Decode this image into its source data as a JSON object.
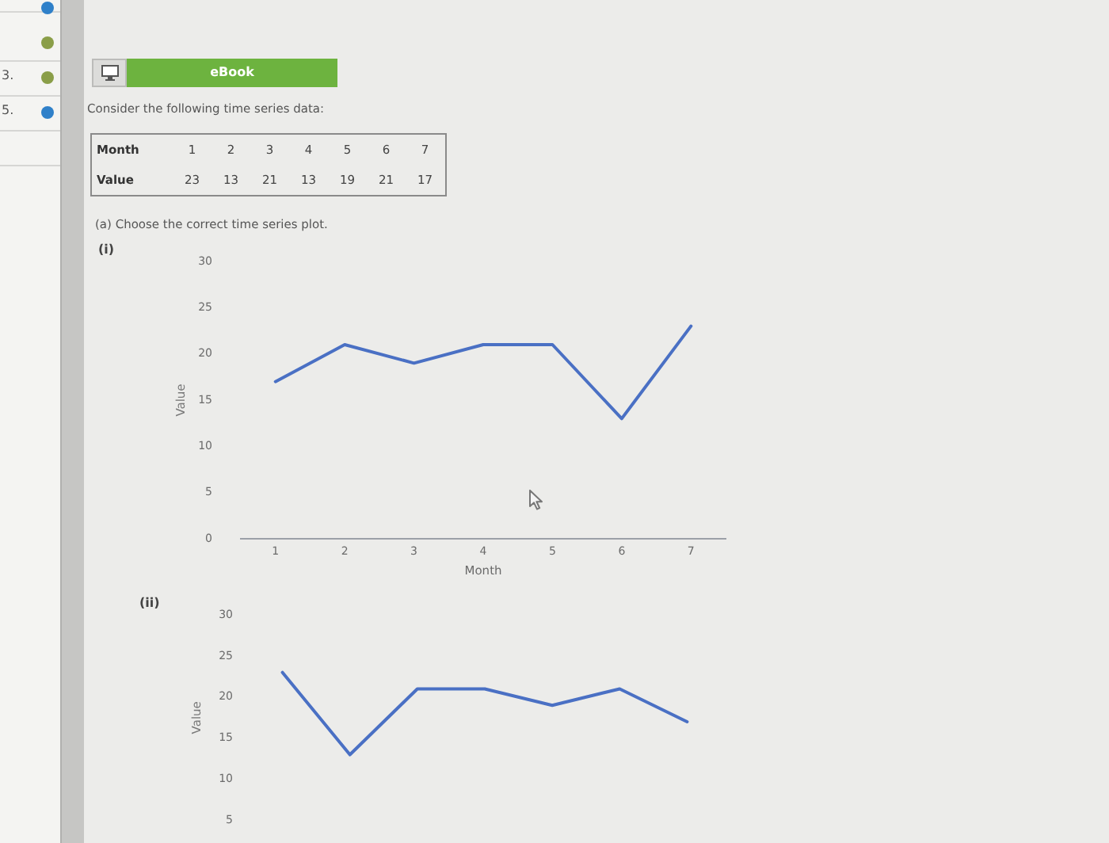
{
  "chart_data": [
    {
      "type": "heatmap",
      "title": "Consider the following time series data:",
      "xlabel": "Month",
      "categories": [
        "1",
        "2",
        "3",
        "4",
        "5",
        "6",
        "7"
      ],
      "y_categories": [
        "Value"
      ],
      "cells": [
        [
          23,
          13,
          21,
          13,
          19,
          21,
          17
        ]
      ],
      "data_labels": true,
      "annotations": [
        "3.",
        "5.",
        "eBook"
      ]
    },
    {
      "type": "line",
      "title": "(a) Choose the correct time series plot.",
      "xlabel": "Month",
      "ylabel": "Value",
      "categories": [
        "1",
        "2",
        "3",
        "4",
        "5",
        "6",
        "7"
      ],
      "values": [
        17,
        21,
        19,
        21,
        21,
        13,
        23
      ],
      "color": "#4a70c4",
      "ylim": [
        0,
        30
      ],
      "yticks": [
        0,
        5,
        10,
        15,
        20,
        25,
        30
      ],
      "marker": "none",
      "annotations": [
        "(i)"
      ]
    },
    {
      "type": "line",
      "title": "(ii)",
      "ylabel": "Value",
      "categories": [
        null,
        null,
        null,
        null,
        null,
        null,
        null
      ],
      "values": [
        23,
        13,
        21,
        21,
        19,
        21,
        17
      ],
      "color": "#4a70c4",
      "ylim": [
        5,
        30
      ],
      "yticks": [
        5,
        10,
        15,
        20,
        25,
        30
      ],
      "tick_labels": "y",
      "marker": "none"
    }
  ]
}
